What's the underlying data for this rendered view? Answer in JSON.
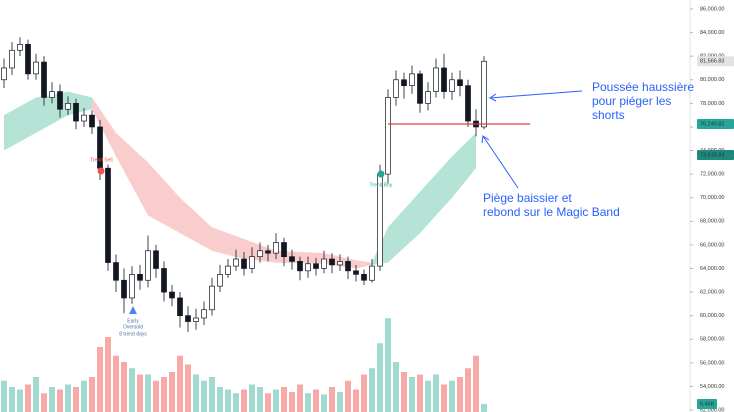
{
  "chart_data": {
    "type": "candlestick",
    "ylim": [
      52000,
      86000
    ],
    "yticks": [
      {
        "value": 86000,
        "label": "86,000.00"
      },
      {
        "value": 84000,
        "label": "84,000.00"
      },
      {
        "value": 82000,
        "label": "82,000.00"
      },
      {
        "value": 80000,
        "label": "80,000.00"
      },
      {
        "value": 78000,
        "label": "78,000.00"
      },
      {
        "value": 76000,
        "label": "76,000.00"
      },
      {
        "value": 74000,
        "label": "74,000.00"
      },
      {
        "value": 72000,
        "label": "72,000.00"
      },
      {
        "value": 70000,
        "label": "70,000.00"
      },
      {
        "value": 68000,
        "label": "68,000.00"
      },
      {
        "value": 66000,
        "label": "66,000.00"
      },
      {
        "value": 64000,
        "label": "64,000.00"
      },
      {
        "value": 62000,
        "label": "62,000.00"
      },
      {
        "value": 60000,
        "label": "60,000.00"
      },
      {
        "value": 58000,
        "label": "58,000.00"
      },
      {
        "value": 56000,
        "label": "56,000.00"
      },
      {
        "value": 54000,
        "label": "54,000.00"
      },
      {
        "value": 52000,
        "label": "52,000.00"
      }
    ],
    "open": [
      80000,
      81000,
      82500,
      83000,
      80500,
      81500,
      78500,
      79000,
      77500,
      78000,
      76500,
      77000,
      76000,
      72500,
      64500,
      63000,
      61500,
      63500,
      63000,
      65500,
      64000,
      62000,
      61500,
      60000,
      59500,
      59800,
      60500,
      62500,
      63500,
      64200,
      64800,
      64000,
      65000,
      65500,
      65300,
      66200,
      65000,
      64600,
      63800,
      64400,
      64000,
      64800,
      64300,
      64600,
      63800,
      63500,
      63000,
      64200,
      72000,
      78500,
      80000,
      79500,
      80500,
      78000,
      79000,
      81000,
      79000,
      80000,
      79500,
      76500,
      76000
    ],
    "high": [
      81800,
      83200,
      83600,
      83400,
      82200,
      82000,
      79800,
      79600,
      78600,
      78400,
      77600,
      77400,
      76600,
      72800,
      65200,
      64000,
      64200,
      64300,
      66800,
      66000,
      64600,
      62600,
      62000,
      60800,
      60600,
      61200,
      63200,
      64300,
      64800,
      65600,
      65400,
      65800,
      66200,
      66000,
      67000,
      66600,
      65600,
      65000,
      65000,
      64900,
      65500,
      65300,
      65200,
      65000,
      64300,
      63900,
      64800,
      72800,
      79200,
      80800,
      80600,
      81200,
      80800,
      79800,
      81800,
      82200,
      80600,
      80800,
      80000,
      77500,
      82000
    ],
    "low": [
      79300,
      80400,
      82000,
      80000,
      80000,
      77800,
      78000,
      76800,
      77000,
      75800,
      76000,
      75400,
      71500,
      63800,
      62000,
      60200,
      61000,
      62200,
      62400,
      63200,
      61200,
      60800,
      59000,
      58600,
      58800,
      59200,
      60000,
      62000,
      63200,
      63800,
      63400,
      63600,
      64500,
      64600,
      64800,
      64200,
      63900,
      63000,
      63200,
      63400,
      63600,
      63600,
      63800,
      63100,
      62900,
      62600,
      62800,
      63800,
      71200,
      77800,
      78400,
      78800,
      77200,
      77400,
      78500,
      78400,
      78300,
      78600,
      76000,
      75200,
      75800
    ],
    "close": [
      81000,
      82500,
      83000,
      80500,
      81500,
      78500,
      79000,
      77500,
      78000,
      76500,
      77000,
      76000,
      72500,
      64500,
      63000,
      61500,
      63500,
      63000,
      65500,
      64000,
      62000,
      61500,
      60000,
      59500,
      59800,
      60500,
      62500,
      63500,
      64200,
      64800,
      64000,
      65000,
      65500,
      65300,
      66200,
      65000,
      64600,
      63800,
      64400,
      64000,
      64800,
      64300,
      64600,
      63800,
      63500,
      63000,
      64200,
      72000,
      78500,
      80000,
      79500,
      80500,
      78000,
      79000,
      81000,
      79000,
      80000,
      79500,
      76500,
      76000,
      81566.83
    ],
    "volume": [
      25,
      20,
      18,
      22,
      28,
      15,
      20,
      18,
      22,
      20,
      25,
      28,
      52,
      60,
      45,
      40,
      35,
      30,
      30,
      25,
      28,
      32,
      45,
      38,
      30,
      25,
      28,
      20,
      18,
      15,
      18,
      22,
      20,
      15,
      18,
      20,
      16,
      22,
      15,
      18,
      14,
      20,
      16,
      25,
      18,
      30,
      35,
      55,
      75,
      40,
      32,
      28,
      30,
      25,
      30,
      22,
      25,
      28,
      35,
      45,
      6.46
    ],
    "candle_color": "#131722",
    "volume_colors": {
      "up": "#9fd9cf",
      "down": "#f7a9a7"
    },
    "bands": [
      {
        "color": "#a8dfd0",
        "index": [
          0,
          4,
          8,
          11
        ],
        "upper": [
          77000,
          78500,
          79000,
          78500
        ],
        "lower": [
          74000,
          75500,
          77000,
          77500
        ]
      },
      {
        "color": "#f9c4c4",
        "index": [
          11,
          14,
          18,
          22,
          26,
          30,
          34,
          40,
          44,
          46
        ],
        "upper": [
          78500,
          75500,
          73000,
          70000,
          67500,
          66500,
          65500,
          65300,
          64700,
          64500
        ],
        "lower": [
          77500,
          73500,
          68500,
          67000,
          65500,
          64800,
          64500,
          64400,
          64000,
          64300
        ]
      },
      {
        "color": "#a8dfd0",
        "index": [
          46,
          48,
          52,
          56,
          59
        ],
        "upper": [
          64500,
          67500,
          70500,
          73500,
          75500
        ],
        "lower": [
          64300,
          64500,
          67000,
          70000,
          72500
        ]
      }
    ],
    "level_line": {
      "value": 76249.82,
      "color": "#e53945"
    },
    "price_labels": [
      {
        "value": 81566.83,
        "label": "81,566.83",
        "color": "#e3e3e3",
        "text_color": "#131722"
      },
      {
        "value": 76249.82,
        "label": "76,249.82",
        "color": "#26a69a",
        "text_color": "#ffffff"
      },
      {
        "value": 73615.93,
        "label": "73,615.93",
        "color": "#1e8a7e",
        "text_color": "#ffffff"
      }
    ],
    "volume_label": {
      "value": 6.46,
      "label": "6.46K",
      "color": "#26a69a"
    },
    "signals": {
      "sell": "Trend Sell",
      "buy": "Trend Buy",
      "oversold": [
        "Early",
        "Oversold",
        "8 trend days"
      ]
    },
    "annotations": [
      {
        "lines": [
          "Poussée haussière",
          "pour piéger les",
          "shorts"
        ]
      },
      {
        "lines": [
          "Piège baissier et",
          "rebond sur le Magic Band"
        ]
      }
    ]
  }
}
